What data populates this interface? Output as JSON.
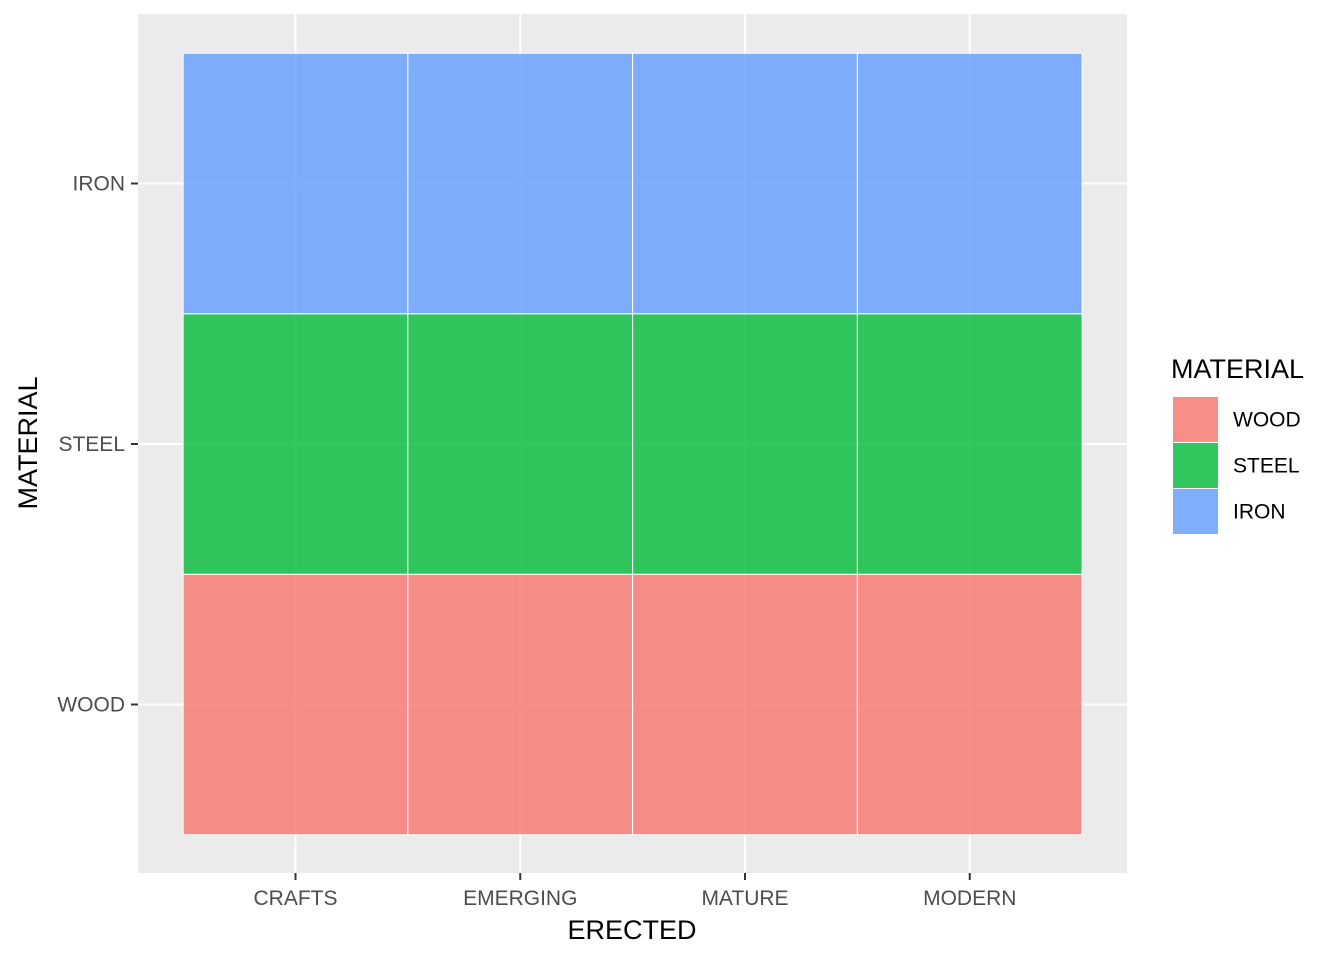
{
  "chart_data": {
    "type": "heatmap",
    "x_categories": [
      "CRAFTS",
      "EMERGING",
      "MATURE",
      "MODERN"
    ],
    "y_categories": [
      "WOOD",
      "STEEL",
      "IRON"
    ],
    "cells": [
      {
        "x": "CRAFTS",
        "y": "WOOD",
        "fill": "WOOD"
      },
      {
        "x": "EMERGING",
        "y": "WOOD",
        "fill": "WOOD"
      },
      {
        "x": "MATURE",
        "y": "WOOD",
        "fill": "WOOD"
      },
      {
        "x": "MODERN",
        "y": "WOOD",
        "fill": "WOOD"
      },
      {
        "x": "CRAFTS",
        "y": "STEEL",
        "fill": "STEEL"
      },
      {
        "x": "EMERGING",
        "y": "STEEL",
        "fill": "STEEL"
      },
      {
        "x": "MATURE",
        "y": "STEEL",
        "fill": "STEEL"
      },
      {
        "x": "MODERN",
        "y": "STEEL",
        "fill": "STEEL"
      },
      {
        "x": "CRAFTS",
        "y": "IRON",
        "fill": "IRON"
      },
      {
        "x": "EMERGING",
        "y": "IRON",
        "fill": "IRON"
      },
      {
        "x": "MATURE",
        "y": "IRON",
        "fill": "IRON"
      },
      {
        "x": "MODERN",
        "y": "IRON",
        "fill": "IRON"
      }
    ],
    "xlabel": "ERECTED",
    "ylabel": "MATERIAL",
    "legend": {
      "title": "MATERIAL",
      "position": "right",
      "entries": [
        {
          "label": "WOOD",
          "color": "#F8766D"
        },
        {
          "label": "STEEL",
          "color": "#00BA38"
        },
        {
          "label": "IRON",
          "color": "#619CFF"
        }
      ]
    },
    "colors": {
      "WOOD": "#F8766D",
      "STEEL": "#00BA38",
      "IRON": "#619CFF"
    },
    "panel_background": "#EBEBEB",
    "grid": true
  }
}
